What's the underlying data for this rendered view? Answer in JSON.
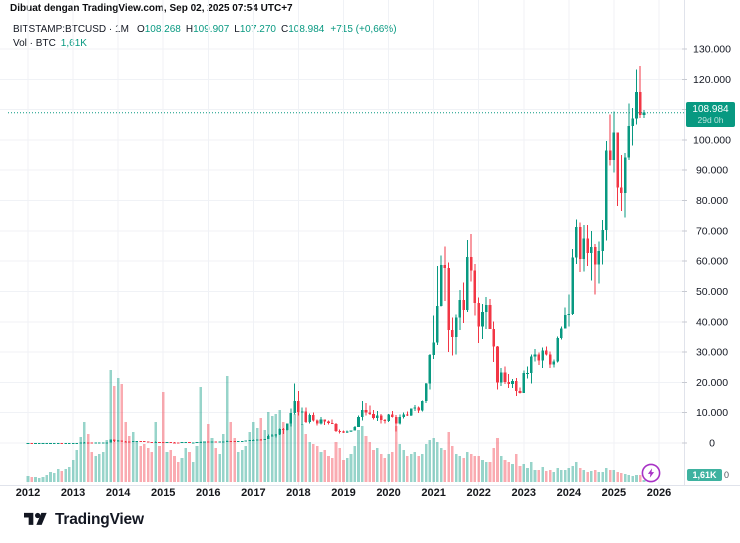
{
  "attribution": "Dibuat dengan TradingView.com, Sep 02, 2025 07:54 UTC+7",
  "legend": {
    "symbol_display": "BITSTAMP:BTCUSD · 1M",
    "o": {
      "label": "O",
      "value": "108.268"
    },
    "h": {
      "label": "H",
      "value": "109.907"
    },
    "l": {
      "label": "L",
      "value": "107.270"
    },
    "c": {
      "label": "C",
      "value": "108.984"
    },
    "change": "+715 (+0,66%)",
    "vol_label": "Vol · BTC",
    "vol_value": "1,61K"
  },
  "price_scale": {
    "current": {
      "price": "108.984",
      "countdown": "29d 0h"
    },
    "volume_current": "1,61K",
    "volume_zero": "0"
  },
  "logo": {
    "text": "TradingView"
  },
  "colors": {
    "up": "#089981",
    "down": "#f23645",
    "vol_up": "#089981",
    "vol_down": "#f23645",
    "grid": "#f0f2f6",
    "axis_border": "#e0e3eb",
    "text": "#131722",
    "tick": "#c7cad1",
    "purple": "#a832c6",
    "current_line": "#089981"
  },
  "chart_data": {
    "type": "candlestick",
    "symbol": "BITSTAMP:BTCUSD",
    "interval": "1M",
    "x_start": "2012-01",
    "x_end": "2025-09",
    "x_tick_labels": [
      "2012",
      "2013",
      "2014",
      "2015",
      "2016",
      "2017",
      "2018",
      "2019",
      "2020",
      "2021",
      "2022",
      "2023",
      "2024",
      "2025",
      "2026"
    ],
    "ylim": [
      0,
      130000
    ],
    "y_tick_step": 10000,
    "current_price": 108984,
    "first_open": 4.7,
    "close": [
      6.1,
      4.9,
      4.9,
      5,
      5.2,
      6.7,
      9.4,
      10.2,
      12.4,
      11.2,
      12.6,
      13.4,
      20.4,
      33.4,
      93,
      139,
      128,
      97,
      106,
      141,
      141,
      211,
      1100,
      732,
      806,
      550,
      458,
      446,
      627,
      635,
      589,
      481,
      386,
      338,
      378,
      320,
      217,
      254,
      244,
      236,
      230,
      263,
      284,
      230,
      236,
      314,
      377,
      430,
      368,
      437,
      416,
      448,
      531,
      673,
      624,
      575,
      610,
      700,
      745,
      963,
      970,
      1190,
      1080,
      1350,
      2290,
      2480,
      2875,
      4703,
      4360,
      6468,
      9916,
      13880,
      10221,
      10397,
      6928,
      9245,
      7494,
      6404,
      7735,
      7033,
      6626,
      6303,
      4017,
      3743,
      3437,
      3816,
      4103,
      5269,
      8574,
      10818,
      10082,
      9594,
      8293,
      9152,
      7556,
      7194,
      9350,
      8600,
      6439,
      8629,
      9454,
      9137,
      11351,
      11655,
      10776,
      13797,
      19698,
      28996,
      33141,
      45240,
      58787,
      57720,
      37298,
      35045,
      41462,
      47130,
      43824,
      61320,
      56950,
      46216,
      38483,
      43193,
      45539,
      37630,
      31792,
      19942,
      23293,
      20050,
      19424,
      20490,
      17168,
      16542,
      23125,
      23147,
      28465,
      29233,
      27216,
      30472,
      29230,
      25932,
      26962,
      34656,
      37718,
      42265,
      42580,
      61130,
      71333,
      60670,
      67530,
      62668,
      64619,
      58969,
      63329,
      70290,
      96440,
      93429,
      102405,
      84349,
      82550,
      94180,
      104600,
      107140,
      115770,
      108268,
      108984
    ],
    "high": [
      7.2,
      6.2,
      5.6,
      5.6,
      6,
      7.1,
      9.6,
      13.5,
      12.7,
      12.8,
      12.9,
      14,
      21.9,
      34.5,
      94,
      266,
      146,
      130,
      110,
      147,
      147,
      233,
      1163,
      1153,
      1000,
      830,
      700,
      550,
      630,
      680,
      660,
      600,
      495,
      395,
      460,
      385,
      322,
      261,
      300,
      262,
      248,
      268,
      318,
      288,
      248,
      334,
      502,
      468,
      436,
      448,
      444,
      470,
      554,
      780,
      706,
      630,
      629,
      720,
      755,
      982,
      1140,
      1220,
      1290,
      1350,
      2790,
      3000,
      2930,
      4765,
      4980,
      6480,
      11400,
      19666,
      17234,
      11786,
      11660,
      9760,
      9990,
      7780,
      8500,
      7770,
      7410,
      7680,
      6550,
      4410,
      4110,
      4190,
      4200,
      5640,
      9090,
      13880,
      13200,
      12325,
      10950,
      10540,
      9505,
      7850,
      9570,
      10500,
      9200,
      9460,
      10070,
      10380,
      11450,
      12480,
      12050,
      14100,
      19863,
      29330,
      42000,
      58356,
      61844,
      64900,
      59592,
      41330,
      42448,
      50500,
      52920,
      66999,
      69000,
      59053,
      47990,
      45821,
      48189,
      47448,
      40023,
      31957,
      24668,
      25211,
      22799,
      21085,
      21480,
      18387,
      23962,
      25250,
      29184,
      31050,
      29820,
      31443,
      31862,
      30230,
      27483,
      35198,
      38415,
      44700,
      48969,
      63933,
      73794,
      72715,
      71946,
      71907,
      69987,
      65593,
      66480,
      73620,
      99645,
      108365,
      109350,
      102500,
      95000,
      95768,
      111980,
      110530,
      123218,
      124457,
      109907
    ],
    "low": [
      3.9,
      4.2,
      4.5,
      4.8,
      4.9,
      5.1,
      6.6,
      9,
      9.9,
      10.3,
      10.4,
      12.3,
      12.8,
      18.8,
      33,
      78,
      79,
      88,
      63,
      92,
      120,
      126,
      200,
      380,
      725,
      400,
      420,
      340,
      420,
      540,
      560,
      440,
      365,
      275,
      320,
      285,
      152,
      210,
      236,
      210,
      226,
      222,
      255,
      198,
      223,
      235,
      307,
      350,
      350,
      366,
      383,
      410,
      438,
      518,
      592,
      465,
      565,
      598,
      690,
      741,
      750,
      915,
      945,
      1060,
      1340,
      2110,
      1850,
      2670,
      2980,
      4160,
      5430,
      9380,
      9035,
      5920,
      6600,
      6425,
      7030,
      5780,
      6070,
      5880,
      6120,
      6190,
      3559,
      3122,
      3350,
      3330,
      3670,
      4050,
      5270,
      7432,
      9071,
      9230,
      7700,
      7293,
      6515,
      6435,
      6850,
      8400,
      3850,
      6140,
      8101,
      8830,
      8900,
      10500,
      9825,
      10374,
      13195,
      17572,
      27734,
      32296,
      44963,
      46930,
      30000,
      28800,
      29278,
      37332,
      39573,
      43283,
      53245,
      42000,
      32950,
      34322,
      37578,
      37630,
      26700,
      17593,
      18781,
      19520,
      18125,
      18157,
      15460,
      16256,
      16490,
      21351,
      19569,
      26942,
      25811,
      24750,
      28855,
      24715,
      24900,
      26538,
      34080,
      38122,
      38501,
      42192,
      59005,
      56500,
      56535,
      58402,
      53550,
      49050,
      52550,
      58946,
      66835,
      91530,
      89256,
      78258,
      76606,
      74434,
      93400,
      98240,
      105116,
      107270,
      107270
    ],
    "volume": [
      6,
      5,
      5,
      4,
      5,
      7,
      10,
      9,
      13,
      11,
      13,
      15,
      22,
      32,
      45,
      60,
      48,
      30,
      26,
      28,
      30,
      42,
      112,
      96,
      104,
      98,
      60,
      46,
      50,
      40,
      36,
      38,
      34,
      30,
      60,
      36,
      90,
      30,
      32,
      26,
      20,
      24,
      34,
      30,
      20,
      36,
      95,
      40,
      58,
      44,
      34,
      28,
      48,
      106,
      60,
      44,
      30,
      32,
      36,
      50,
      60,
      54,
      64,
      52,
      70,
      66,
      68,
      72,
      60,
      56,
      64,
      68,
      70,
      58,
      48,
      40,
      38,
      36,
      30,
      32,
      26,
      24,
      40,
      34,
      22,
      24,
      28,
      36,
      52,
      56,
      46,
      40,
      32,
      34,
      28,
      24,
      28,
      30,
      56,
      38,
      32,
      26,
      28,
      30,
      26,
      28,
      38,
      42,
      44,
      40,
      34,
      32,
      50,
      36,
      28,
      26,
      24,
      30,
      28,
      26,
      26,
      22,
      20,
      20,
      34,
      44,
      26,
      22,
      20,
      18,
      28,
      16,
      18,
      14,
      20,
      12,
      12,
      15,
      11,
      12,
      10,
      14,
      12,
      12,
      14,
      16,
      20,
      14,
      12,
      10,
      11,
      12,
      10,
      10,
      14,
      12,
      12,
      10,
      9,
      8,
      7,
      6,
      7,
      7,
      2
    ],
    "volume_current_label": "1,61K"
  }
}
